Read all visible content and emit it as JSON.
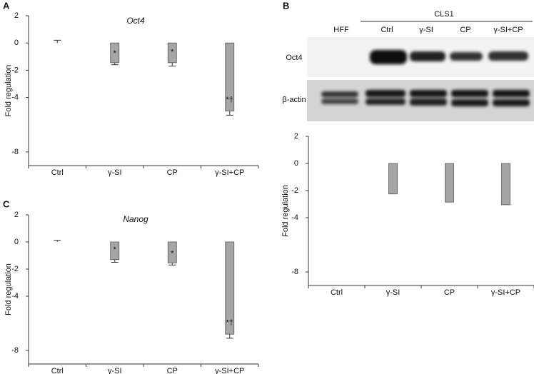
{
  "chart_data": [
    {
      "type": "bar",
      "panel_label": "A",
      "title": "Oct4",
      "y_label": "Fold regulation",
      "categories": [
        "Ctrl",
        "γ-SI",
        "CP",
        "γ-SI+CP"
      ],
      "values": [
        0,
        -1.45,
        -1.45,
        -5.0
      ],
      "errors": [
        0.2,
        0.15,
        0.25,
        0.3
      ],
      "annotations": [
        null,
        "*",
        "*",
        "*†"
      ],
      "color": "#a6a6a6",
      "ylim": [
        -9,
        2
      ],
      "yticks": [
        2,
        0,
        -2,
        -4,
        -8
      ]
    },
    {
      "type": "bar",
      "y_label": "Fold regulation",
      "categories": [
        "Ctrl",
        "γ-SI",
        "CP",
        "γ-SI+CP"
      ],
      "values": [
        0,
        -2.25,
        -2.85,
        -3.05
      ],
      "color": "#a6a6a6",
      "ylim": [
        -9,
        2
      ],
      "yticks": [
        2,
        0,
        -2,
        -4,
        -8
      ]
    },
    {
      "type": "bar",
      "panel_label": "C",
      "title": "Nanog",
      "y_label": "Fold regulation",
      "categories": [
        "Ctrl",
        "γ-SI",
        "CP",
        "γ-SI+CP"
      ],
      "values": [
        0,
        -1.3,
        -1.55,
        -6.8
      ],
      "errors": [
        0.12,
        0.2,
        0.15,
        0.3
      ],
      "annotations": [
        null,
        "*",
        "*",
        "*†"
      ],
      "color": "#a6a6a6",
      "ylim": [
        -9,
        2
      ],
      "yticks": [
        2,
        0,
        -2,
        -4,
        -8
      ]
    }
  ],
  "blot": {
    "panel_label": "B",
    "control_lane": "HFF",
    "group_label": "CLS1",
    "lanes": [
      "Ctrl",
      "γ-SI",
      "CP",
      "γ-SI+CP"
    ],
    "rows": [
      "Oct4",
      "β-actin"
    ]
  }
}
